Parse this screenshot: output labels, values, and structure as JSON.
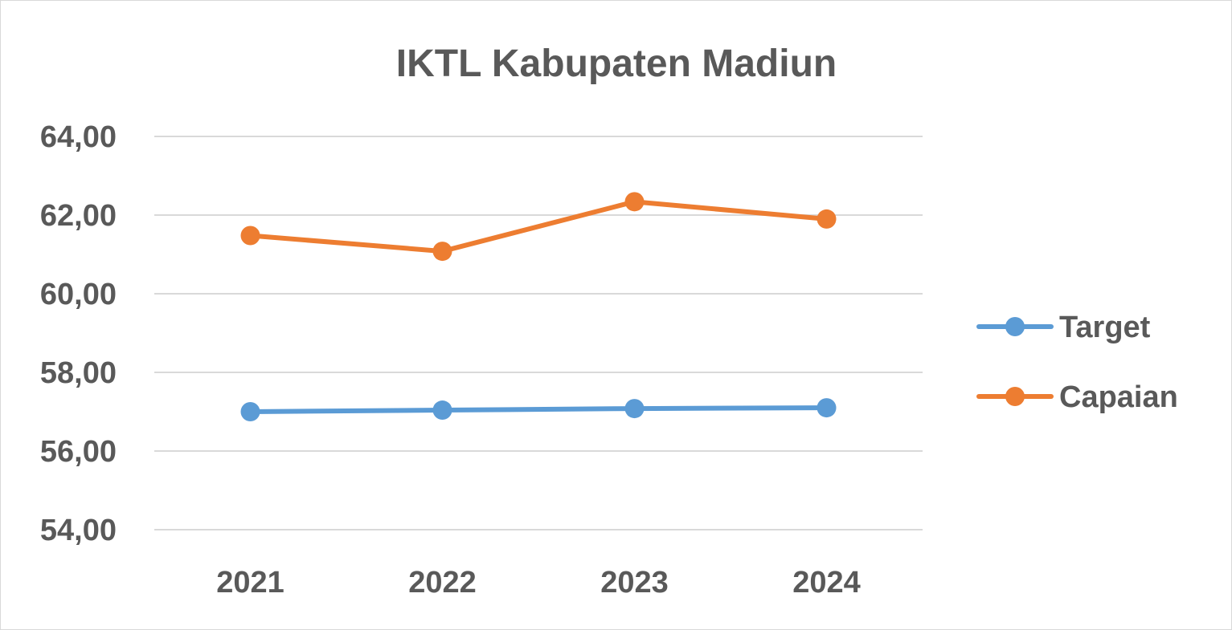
{
  "chart_data": {
    "type": "line",
    "title": "IKTL Kabupaten Madiun",
    "xlabel": "",
    "ylabel": "",
    "categories": [
      "2021",
      "2022",
      "2023",
      "2024"
    ],
    "y_tick_labels": [
      "54,00",
      "56,00",
      "58,00",
      "60,00",
      "62,00",
      "64,00"
    ],
    "ylim": [
      54,
      64
    ],
    "y_ticks": [
      54,
      56,
      58,
      60,
      62,
      64
    ],
    "grid": "horizontal",
    "legend_position": "right",
    "series": [
      {
        "name": "Target",
        "color": "#5b9bd5",
        "values": [
          57.0,
          57.04,
          57.08,
          57.1
        ]
      },
      {
        "name": "Capaian",
        "color": "#ed7d31",
        "values": [
          61.48,
          61.08,
          62.34,
          61.9
        ]
      }
    ]
  }
}
